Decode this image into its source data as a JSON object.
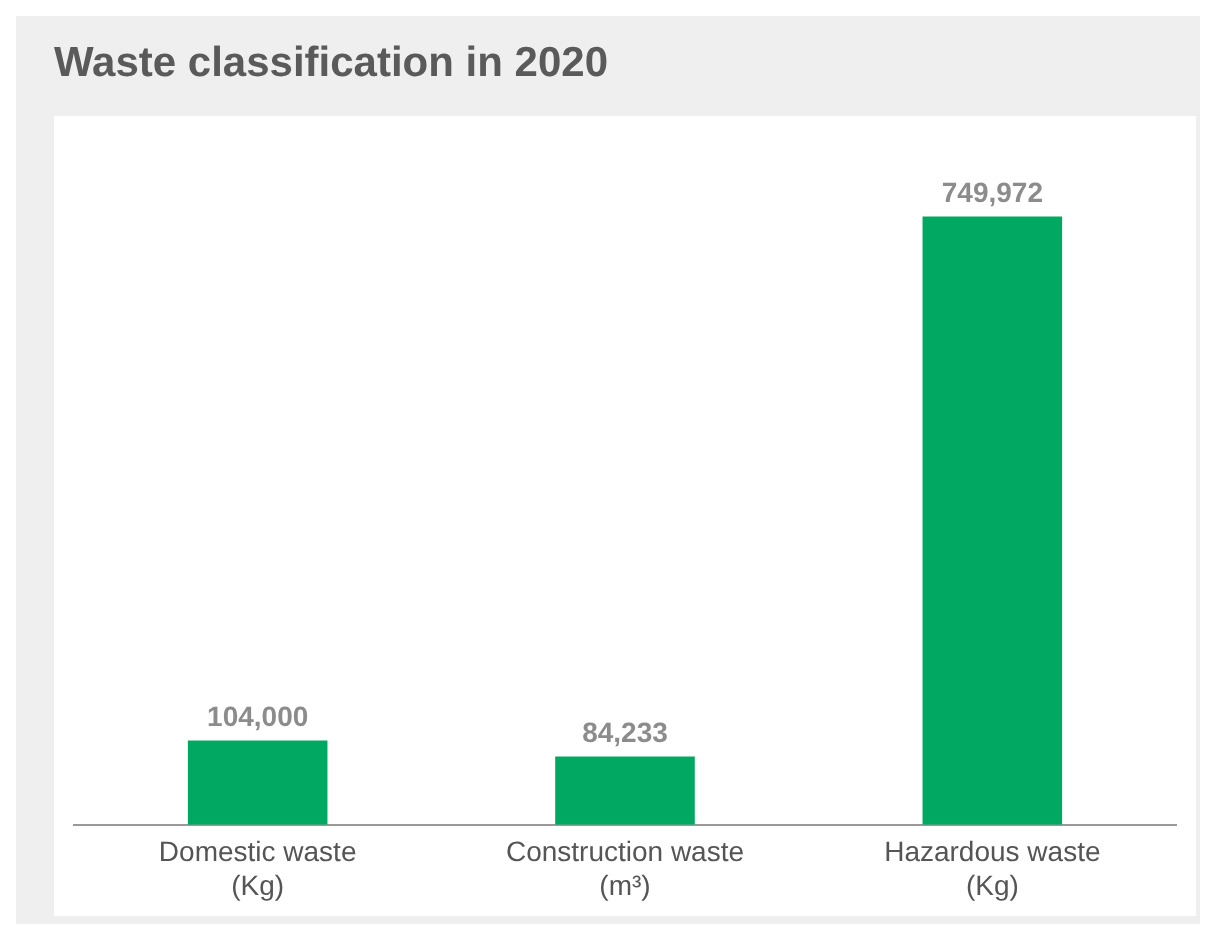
{
  "chart_data": {
    "type": "bar",
    "title": "Waste classification in 2020",
    "categories": [
      "Domestic waste\n(Kg)",
      "Construction waste\n(m³)",
      "Hazardous waste\n(Kg)"
    ],
    "values": [
      104000,
      84233,
      749972
    ],
    "value_labels": [
      "104,000",
      "84,233",
      "749,972"
    ],
    "color": "#00a862",
    "grid": false,
    "legend": false
  }
}
